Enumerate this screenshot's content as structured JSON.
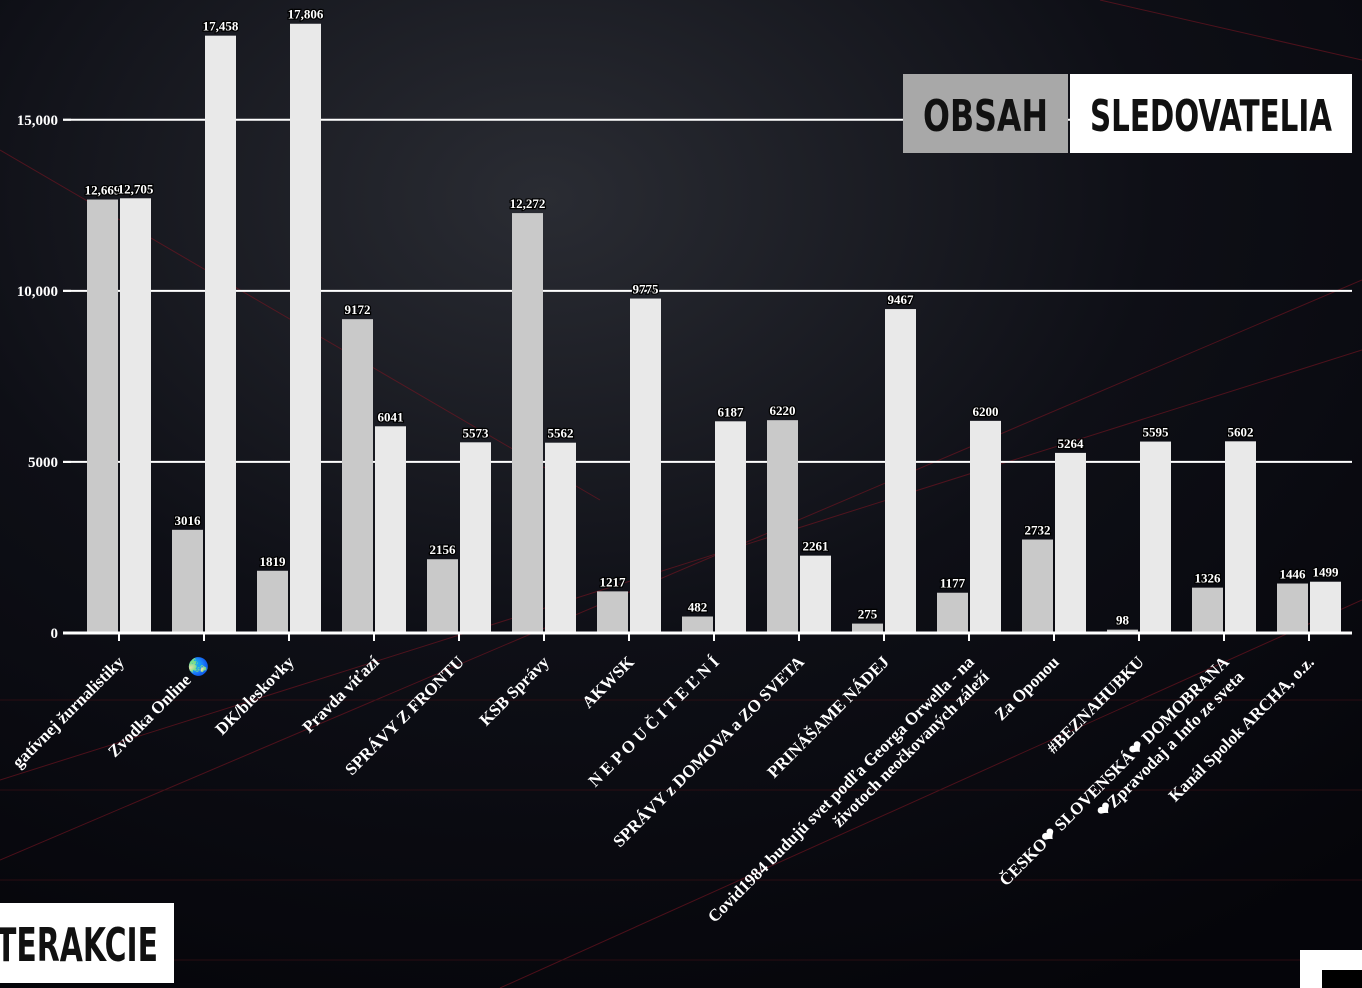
{
  "chart_data": {
    "type": "bar",
    "categories": [
      "gatívnej žurnalistiky",
      "Zvodka Online 🌏",
      "DK/bleskovky",
      "Pravda víťazí",
      "SPRÁVY Z FRONTU",
      "KSB Správy",
      "AKWSK",
      "N E P O U Č I T E Ľ N Í",
      "SPRÁVY z DOMOVA a ZO SVETA",
      "PRINÁŠAME NÁDEJ",
      [
        "Covid1984 budujú svet podľa Georga Orwella - na",
        "životoch neočkovaných záleží"
      ],
      "Za Oponou",
      "#BEZNAHUBKU",
      [
        "ČESKO❤ SLOVENSKÁ❤ DOMOBRANA",
        "❤Zpravodaj a Info ze sveta"
      ],
      "Kanál Spolok ARCHA, o.z."
    ],
    "series": [
      {
        "name": "OBSAH",
        "color": "#c9c9c9",
        "values": [
          12669,
          3016,
          1819,
          9172,
          2156,
          12272,
          1217,
          482,
          6220,
          275,
          1177,
          2732,
          98,
          1326,
          1446
        ],
        "value_labels": [
          "12,669",
          "3016",
          "1819",
          "9172",
          "2156",
          "12,272",
          "1217",
          "482",
          "6220",
          "275",
          "1177",
          "2732",
          "98",
          "1326",
          "1446"
        ]
      },
      {
        "name": "SLEDOVATELIA",
        "color": "#e9e9e9",
        "values": [
          12705,
          17458,
          17806,
          6041,
          5573,
          5562,
          9775,
          6187,
          2261,
          9467,
          6200,
          5264,
          5595,
          5602,
          1499
        ],
        "value_labels": [
          "12,705",
          "17,458",
          "17,806",
          "6041",
          "5573",
          "5562",
          "9775",
          "6187",
          "2261",
          "9467",
          "6200",
          "5264",
          "5595",
          "5602",
          "1499"
        ]
      }
    ],
    "ylim": [
      0,
      18500
    ],
    "yticks": [
      0,
      5000,
      {
        "value": 10000,
        "label": "10,000"
      },
      {
        "value": 15000,
        "label": "15,000"
      }
    ],
    "grid": true,
    "legend": "top-right",
    "footer": "TERAKCIE"
  }
}
